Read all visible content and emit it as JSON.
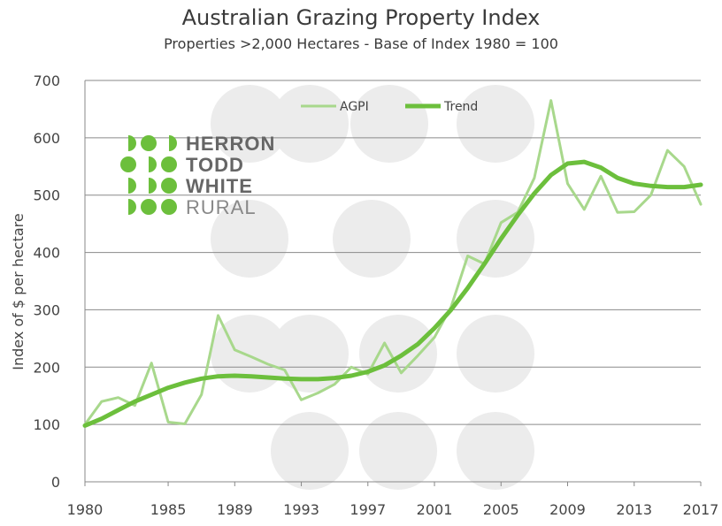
{
  "chart_data": {
    "type": "line",
    "title": "Australian Grazing Property Index",
    "subtitle": "Properties >2,000 Hectares - Base of Index 1980 = 100",
    "xlabel": "",
    "ylabel": "Index of $ per hectare",
    "ylim": [
      0,
      700
    ],
    "xlim": [
      1980,
      2017
    ],
    "yticks": [
      0,
      100,
      200,
      300,
      400,
      500,
      600,
      700
    ],
    "xticks": [
      1980,
      1985,
      1989,
      1993,
      1997,
      2001,
      2005,
      2009,
      2013,
      2017
    ],
    "grid": "horizontal",
    "legend": "top-center",
    "series": [
      {
        "name": "AGPI",
        "color": "#a8d88c",
        "x": [
          1980,
          1981,
          1982,
          1983,
          1984,
          1985,
          1986,
          1987,
          1988,
          1989,
          1990,
          1991,
          1992,
          1993,
          1994,
          1995,
          1996,
          1997,
          1998,
          1999,
          2000,
          2001,
          2002,
          2003,
          2004,
          2005,
          2006,
          2007,
          2008,
          2009,
          2010,
          2011,
          2012,
          2013,
          2014,
          2015,
          2016,
          2017
        ],
        "values": [
          100,
          140,
          147,
          133,
          207,
          104,
          101,
          152,
          290,
          230,
          218,
          205,
          195,
          143,
          155,
          170,
          200,
          188,
          242,
          190,
          220,
          252,
          305,
          394,
          380,
          452,
          470,
          530,
          665,
          520,
          475,
          533,
          470,
          471,
          500,
          578,
          550,
          484
        ]
      },
      {
        "name": "Trend",
        "color": "#6cbf3c",
        "x": [
          1980,
          1981,
          1982,
          1983,
          1984,
          1985,
          1986,
          1987,
          1988,
          1989,
          1990,
          1991,
          1992,
          1993,
          1994,
          1995,
          1996,
          1997,
          1998,
          1999,
          2000,
          2001,
          2002,
          2003,
          2004,
          2005,
          2006,
          2007,
          2008,
          2009,
          2010,
          2011,
          2012,
          2013,
          2014,
          2015,
          2016,
          2017
        ],
        "values": [
          98,
          110,
          125,
          140,
          152,
          164,
          173,
          180,
          184,
          185,
          184,
          182,
          180,
          179,
          179,
          181,
          185,
          192,
          203,
          220,
          240,
          268,
          300,
          338,
          380,
          424,
          465,
          503,
          535,
          555,
          558,
          548,
          530,
          520,
          516,
          514,
          514,
          518
        ]
      }
    ]
  },
  "logo": {
    "lines": [
      "HERRON",
      "TODD",
      "WHITE",
      "RURAL"
    ],
    "color": "#6cbf3c"
  }
}
